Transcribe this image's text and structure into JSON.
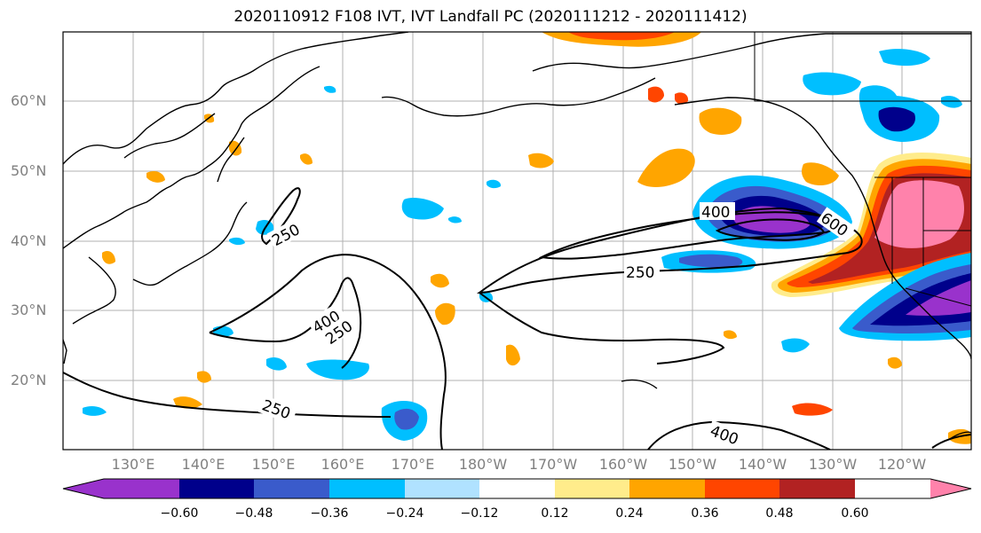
{
  "title": "2020110912 F108 IVT, IVT Landfall PC (2020111212 - 2020111412)",
  "lat_labels": [
    "60°N",
    "50°N",
    "40°N",
    "30°N",
    "20°N"
  ],
  "lon_labels": [
    "130°E",
    "140°E",
    "150°E",
    "160°E",
    "170°E",
    "180°W",
    "170°W",
    "160°W",
    "150°W",
    "140°W",
    "130°W",
    "120°W"
  ],
  "contour_labels": [
    "250",
    "400",
    "600",
    "250",
    "400",
    "250",
    "250",
    "400"
  ],
  "colorbar": {
    "ticks": [
      "−0.60",
      "−0.48",
      "−0.36",
      "−0.24",
      "−0.12",
      "0.12",
      "0.24",
      "0.36",
      "0.48",
      "0.60"
    ],
    "colors": [
      "#9932CC",
      "#00008B",
      "#3A5BCB",
      "#00BFFF",
      "#B0E2FF",
      "#FFFFFF",
      "#FFEC8B",
      "#FFA500",
      "#FF4500",
      "#B22222",
      "#FF82AB"
    ]
  }
}
